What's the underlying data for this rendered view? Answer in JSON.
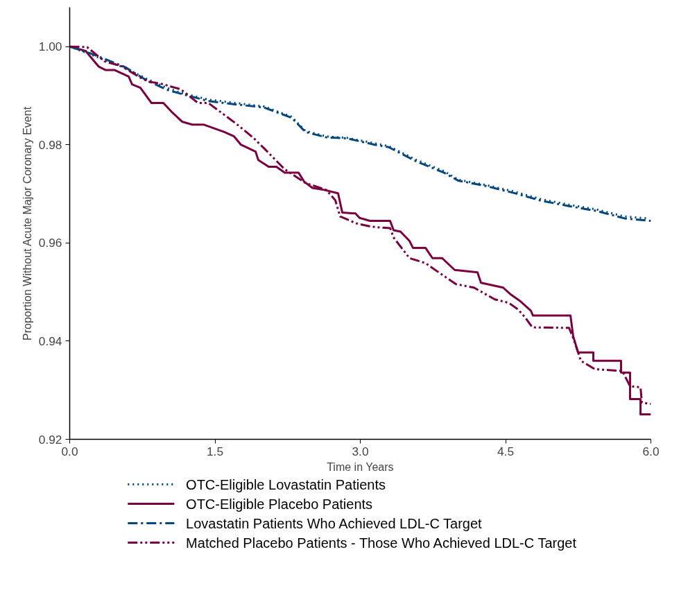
{
  "chart_data": {
    "type": "line",
    "xlabel": "Time in Years",
    "ylabel": "Proportion Without Acute Major Coronary Event",
    "xlim": [
      0,
      6
    ],
    "ylim": [
      0.92,
      1.008
    ],
    "xticks": [
      {
        "value": 0,
        "label": "0.0"
      },
      {
        "value": 1.5,
        "label": "1.5"
      },
      {
        "value": 3,
        "label": "3.0"
      },
      {
        "value": 4.5,
        "label": "4.5"
      },
      {
        "value": 6,
        "label": "6.0"
      }
    ],
    "yticks": [
      0.92,
      0.94,
      0.96,
      0.98,
      {
        "value": 1,
        "label": "1.00"
      }
    ],
    "grid": false,
    "legend": "bottom",
    "marker": "none",
    "series": [
      {
        "name": "OTC-Eligible Lovastatin Patients",
        "color": "#00467f",
        "line_style": "dotted",
        "x": [
          0,
          0.215,
          0.358,
          0.573,
          0.788,
          1.002,
          1.146,
          1.432,
          1.718,
          2.005,
          2.291,
          2.434,
          2.649,
          2.864,
          3.15,
          3.294,
          3.58,
          3.866,
          4.01,
          4.296,
          4.582,
          4.869,
          5.155,
          5.442,
          5.728,
          5.96
        ],
        "values": [
          1.0,
          0.9984,
          0.9973,
          0.9956,
          0.9935,
          0.9916,
          0.9906,
          0.9892,
          0.9885,
          0.9878,
          0.9857,
          0.9828,
          0.9817,
          0.9814,
          0.9803,
          0.9797,
          0.9769,
          0.9746,
          0.9729,
          0.9718,
          0.9705,
          0.9689,
          0.9678,
          0.9668,
          0.9654,
          0.965
        ]
      },
      {
        "name": "OTC-Eligible Placebo Patients",
        "color": "#7b0040",
        "line_style": "solid",
        "x": [
          0,
          0.165,
          0.236,
          0.301,
          0.372,
          0.465,
          0.609,
          0.644,
          0.73,
          0.845,
          0.967,
          1.053,
          1.16,
          1.267,
          1.382,
          1.597,
          1.697,
          1.768,
          1.919,
          1.947,
          2.055,
          2.134,
          2.22,
          2.363,
          2.42,
          2.506,
          2.628,
          2.771,
          2.814,
          2.95,
          2.993,
          3.1,
          3.308,
          3.344,
          3.415,
          3.508,
          3.544,
          3.673,
          3.745,
          3.845,
          3.974,
          4.21,
          4.246,
          4.475,
          4.547,
          4.654,
          4.761,
          4.783,
          5.17,
          5.198,
          5.248,
          5.406,
          5.406,
          5.692,
          5.692,
          5.785,
          5.785,
          5.893,
          5.893,
          6.0
        ],
        "values": [
          1.0,
          0.9991,
          0.9974,
          0.9959,
          0.9952,
          0.9952,
          0.9939,
          0.9923,
          0.9916,
          0.9885,
          0.9885,
          0.9867,
          0.9847,
          0.9841,
          0.9841,
          0.9826,
          0.9817,
          0.98,
          0.9786,
          0.9769,
          0.9755,
          0.9755,
          0.9743,
          0.9743,
          0.9725,
          0.9712,
          0.9708,
          0.9701,
          0.9662,
          0.966,
          0.9651,
          0.9645,
          0.9645,
          0.9626,
          0.9623,
          0.9604,
          0.959,
          0.959,
          0.9569,
          0.9569,
          0.9545,
          0.954,
          0.9519,
          0.9509,
          0.9496,
          0.9481,
          0.9462,
          0.9452,
          0.9452,
          0.941,
          0.9377,
          0.9377,
          0.936,
          0.936,
          0.9336,
          0.9336,
          0.9282,
          0.9282,
          0.9251,
          0.9251
        ]
      },
      {
        "name": "Lovastatin Patients Who Achieved LDL-C Target",
        "color": "#00467f",
        "line_style": "dashdot",
        "x": [
          0,
          0.215,
          0.358,
          0.573,
          0.788,
          1.002,
          1.146,
          1.432,
          1.718,
          2.005,
          2.291,
          2.434,
          2.649,
          2.864,
          3.15,
          3.294,
          3.58,
          3.866,
          4.01,
          4.296,
          4.582,
          4.869,
          5.155,
          5.442,
          5.728,
          6.0
        ],
        "values": [
          1.0,
          0.9986,
          0.9975,
          0.9958,
          0.9932,
          0.9912,
          0.9904,
          0.9889,
          0.9882,
          0.9876,
          0.9855,
          0.9826,
          0.9815,
          0.9813,
          0.98,
          0.9795,
          0.9766,
          0.9743,
          0.9727,
          0.9716,
          0.9702,
          0.9686,
          0.9675,
          0.9665,
          0.965,
          0.9645
        ]
      },
      {
        "name": "Matched Placebo Patients - Those Who Achieved LDL-C Target",
        "color": "#7b0040",
        "line_style": "dashdotdot",
        "x": [
          0,
          0.179,
          0.358,
          0.537,
          0.716,
          0.823,
          0.931,
          1.146,
          1.325,
          1.432,
          1.575,
          1.718,
          1.897,
          2.005,
          2.22,
          2.434,
          2.649,
          2.742,
          2.792,
          2.957,
          3.115,
          3.308,
          3.344,
          3.508,
          3.673,
          3.795,
          3.988,
          4.174,
          4.389,
          4.532,
          4.632,
          4.704,
          4.776,
          5.155,
          5.205,
          5.277,
          5.42,
          5.706,
          5.785,
          5.893,
          5.907,
          6.0
        ],
        "values": [
          1.0,
          0.9999,
          0.997,
          0.996,
          0.9938,
          0.9928,
          0.9925,
          0.9913,
          0.9885,
          0.9885,
          0.9864,
          0.9843,
          0.9814,
          0.9793,
          0.975,
          0.9722,
          0.9708,
          0.9687,
          0.9654,
          0.964,
          0.9633,
          0.963,
          0.9611,
          0.9569,
          0.9559,
          0.9542,
          0.9516,
          0.9509,
          0.9485,
          0.9478,
          0.9464,
          0.9448,
          0.9428,
          0.9427,
          0.9403,
          0.936,
          0.9343,
          0.9339,
          0.9308,
          0.9306,
          0.9275,
          0.9272
        ]
      }
    ]
  }
}
